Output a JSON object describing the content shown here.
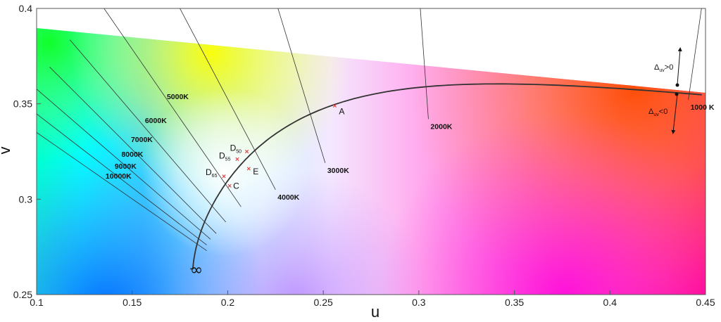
{
  "axes": {
    "x_label": "u",
    "y_label": "v",
    "x_ticks": [
      "0.1",
      "0.15",
      "0.2",
      "0.25",
      "0.3",
      "0.35",
      "0.4",
      "0.45"
    ],
    "y_ticks": [
      "0.25",
      "0.3",
      "0.35",
      "0.4"
    ],
    "xlim": [
      0.1,
      0.45
    ],
    "ylim": [
      0.25,
      0.4
    ]
  },
  "isotherms": [
    {
      "label": "10000K",
      "tu": 0.189,
      "tv": 0.273
    },
    {
      "label": "9000K",
      "tu": 0.189,
      "tv": 0.276
    },
    {
      "label": "8000K",
      "tu": 0.191,
      "tv": 0.279
    },
    {
      "label": "7000K",
      "tu": 0.194,
      "tv": 0.282
    },
    {
      "label": "6000K",
      "tu": 0.199,
      "tv": 0.288
    },
    {
      "label": "5000K",
      "tu": 0.207,
      "tv": 0.296
    },
    {
      "label": "4000K",
      "tu": 0.225,
      "tv": 0.305
    },
    {
      "label": "3000K",
      "tu": 0.251,
      "tv": 0.319
    },
    {
      "label": "2000K",
      "tu": 0.305,
      "tv": 0.342
    },
    {
      "label": "1000 K",
      "tu": 0.441,
      "tv": 0.352
    }
  ],
  "points": [
    {
      "main": "A",
      "sub": "",
      "u": 0.256,
      "v": 0.349
    },
    {
      "main": "D",
      "sub": "50",
      "u": 0.21,
      "v": 0.325
    },
    {
      "main": "D",
      "sub": "55",
      "u": 0.205,
      "v": 0.321
    },
    {
      "main": "E",
      "sub": "",
      "u": 0.211,
      "v": 0.316
    },
    {
      "main": "D",
      "sub": "65",
      "u": 0.198,
      "v": 0.312
    },
    {
      "main": "C",
      "sub": "",
      "u": 0.201,
      "v": 0.307
    }
  ],
  "infinity_label": "∞",
  "duv": {
    "above": {
      "symbol": "Δ",
      "sub": "uv",
      "rel": ">0"
    },
    "below": {
      "symbol": "Δ",
      "sub": "uv",
      "rel": "<0"
    }
  },
  "colors": {
    "locus": "#333333",
    "isotherm": "#333333",
    "marker": "#e04040"
  }
}
